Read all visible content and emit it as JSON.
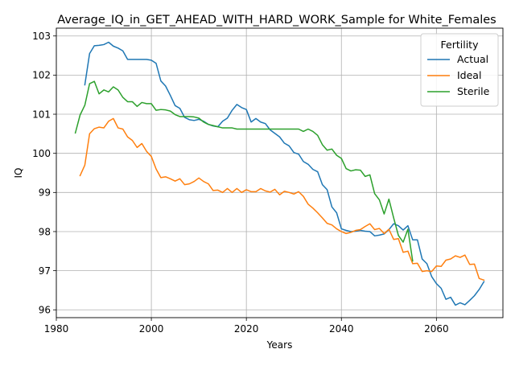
{
  "chart_data": {
    "type": "line",
    "title": "Average_IQ_in_GET_AHEAD_WITH_HARD_WORK_Sample for White_Females",
    "xlabel": "Years",
    "ylabel": "IQ",
    "xlim": [
      1980,
      2074
    ],
    "ylim": [
      95.8,
      103.2
    ],
    "xticks": [
      1980,
      2000,
      2020,
      2040,
      2060
    ],
    "yticks": [
      96,
      97,
      98,
      99,
      100,
      101,
      102,
      103
    ],
    "grid": true,
    "legend": {
      "title": "Fertility",
      "placement": "top-right"
    },
    "series": [
      {
        "name": "Actual",
        "color": "#1f77b4",
        "x": [
          1986,
          1987,
          1988,
          1989,
          1990,
          1991,
          1992,
          1993,
          1994,
          1995,
          1996,
          1997,
          1998,
          1999,
          2000,
          2001,
          2002,
          2003,
          2004,
          2005,
          2006,
          2007,
          2008,
          2009,
          2010,
          2011,
          2012,
          2013,
          2014,
          2015,
          2016,
          2017,
          2018,
          2019,
          2020,
          2021,
          2022,
          2023,
          2024,
          2025,
          2026,
          2027,
          2028,
          2029,
          2030,
          2031,
          2032,
          2033,
          2034,
          2035,
          2036,
          2037,
          2038,
          2039,
          2040,
          2041,
          2042,
          2043,
          2044,
          2045,
          2046,
          2047,
          2048,
          2049,
          2050,
          2051,
          2052,
          2053,
          2054,
          2055,
          2056,
          2057,
          2058,
          2059,
          2060,
          2061,
          2062,
          2063,
          2064,
          2065,
          2066,
          2067,
          2068,
          2069,
          2070
        ],
        "y": [
          101.75,
          102.55,
          102.75,
          102.76,
          102.78,
          102.84,
          102.74,
          102.69,
          102.62,
          102.4,
          102.4,
          102.4,
          102.4,
          102.4,
          102.38,
          102.3,
          101.85,
          101.72,
          101.48,
          101.22,
          101.15,
          100.92,
          100.86,
          100.84,
          100.87,
          100.82,
          100.74,
          100.7,
          100.68,
          100.82,
          100.9,
          101.1,
          101.25,
          101.17,
          101.12,
          100.8,
          100.89,
          100.8,
          100.76,
          100.6,
          100.51,
          100.42,
          100.26,
          100.19,
          100.02,
          99.98,
          99.79,
          99.72,
          99.59,
          99.53,
          99.2,
          99.07,
          98.63,
          98.48,
          98.07,
          98.03,
          98.0,
          98.01,
          98.03,
          98.01,
          98.0,
          97.89,
          97.91,
          97.94,
          98.05,
          98.2,
          98.15,
          98.04,
          98.15,
          97.79,
          97.79,
          97.3,
          97.18,
          96.85,
          96.67,
          96.55,
          96.27,
          96.32,
          96.12,
          96.18,
          96.13,
          96.24,
          96.36,
          96.52,
          96.72
        ]
      },
      {
        "name": "Ideal",
        "color": "#ff7f0e",
        "x": [
          1985,
          1986,
          1987,
          1988,
          1989,
          1990,
          1991,
          1992,
          1993,
          1994,
          1995,
          1996,
          1997,
          1998,
          1999,
          2000,
          2001,
          2002,
          2003,
          2004,
          2005,
          2006,
          2007,
          2008,
          2009,
          2010,
          2011,
          2012,
          2013,
          2014,
          2015,
          2016,
          2017,
          2018,
          2019,
          2020,
          2021,
          2022,
          2023,
          2024,
          2025,
          2026,
          2027,
          2028,
          2029,
          2030,
          2031,
          2032,
          2033,
          2034,
          2035,
          2036,
          2037,
          2038,
          2039,
          2040,
          2041,
          2042,
          2043,
          2044,
          2045,
          2046,
          2047,
          2048,
          2049,
          2050,
          2051,
          2052,
          2053,
          2054,
          2055,
          2056,
          2057,
          2058,
          2059,
          2060,
          2061,
          2062,
          2063,
          2064,
          2065,
          2066,
          2067,
          2068,
          2069,
          2070
        ],
        "y": [
          99.43,
          99.7,
          100.5,
          100.63,
          100.67,
          100.65,
          100.82,
          100.89,
          100.65,
          100.62,
          100.42,
          100.33,
          100.15,
          100.25,
          100.05,
          99.92,
          99.6,
          99.38,
          99.4,
          99.35,
          99.29,
          99.35,
          99.2,
          99.22,
          99.28,
          99.37,
          99.28,
          99.22,
          99.05,
          99.06,
          99.0,
          99.1,
          99.0,
          99.1,
          99.0,
          99.07,
          99.02,
          99.02,
          99.1,
          99.04,
          99.01,
          99.08,
          98.94,
          99.03,
          99.0,
          98.96,
          99.02,
          98.9,
          98.7,
          98.6,
          98.48,
          98.35,
          98.21,
          98.17,
          98.07,
          98.0,
          97.95,
          97.98,
          98.03,
          98.05,
          98.13,
          98.2,
          98.05,
          98.08,
          97.95,
          98.06,
          97.8,
          97.82,
          97.47,
          97.5,
          97.18,
          97.19,
          96.98,
          97.0,
          96.98,
          97.12,
          97.11,
          97.27,
          97.3,
          97.38,
          97.34,
          97.4,
          97.16,
          97.17,
          96.8,
          96.76
        ]
      },
      {
        "name": "Sterile",
        "color": "#2ca02c",
        "x": [
          1984,
          1985,
          1986,
          1987,
          1988,
          1989,
          1990,
          1991,
          1992,
          1993,
          1994,
          1995,
          1996,
          1997,
          1998,
          1999,
          2000,
          2001,
          2002,
          2003,
          2004,
          2005,
          2006,
          2007,
          2008,
          2009,
          2010,
          2011,
          2012,
          2013,
          2014,
          2015,
          2016,
          2017,
          2018,
          2019,
          2020,
          2021,
          2022,
          2023,
          2024,
          2025,
          2026,
          2027,
          2028,
          2029,
          2030,
          2031,
          2032,
          2033,
          2034,
          2035,
          2036,
          2037,
          2038,
          2039,
          2040,
          2041,
          2042,
          2043,
          2044,
          2045,
          2046,
          2047,
          2048,
          2049,
          2050,
          2051,
          2052,
          2053,
          2054,
          2055
        ],
        "y": [
          100.52,
          100.98,
          101.23,
          101.78,
          101.84,
          101.52,
          101.62,
          101.57,
          101.7,
          101.62,
          101.43,
          101.32,
          101.32,
          101.2,
          101.3,
          101.27,
          101.27,
          101.1,
          101.12,
          101.11,
          101.08,
          100.99,
          100.94,
          100.94,
          100.94,
          100.93,
          100.9,
          100.8,
          100.74,
          100.71,
          100.68,
          100.65,
          100.65,
          100.65,
          100.62,
          100.62,
          100.62,
          100.62,
          100.62,
          100.62,
          100.62,
          100.62,
          100.62,
          100.62,
          100.62,
          100.62,
          100.62,
          100.62,
          100.56,
          100.62,
          100.56,
          100.46,
          100.22,
          100.08,
          100.11,
          99.95,
          99.87,
          99.61,
          99.55,
          99.58,
          99.57,
          99.41,
          99.45,
          98.97,
          98.81,
          98.45,
          98.83,
          98.35,
          97.9,
          97.73,
          98.06,
          97.25
        ]
      }
    ]
  }
}
